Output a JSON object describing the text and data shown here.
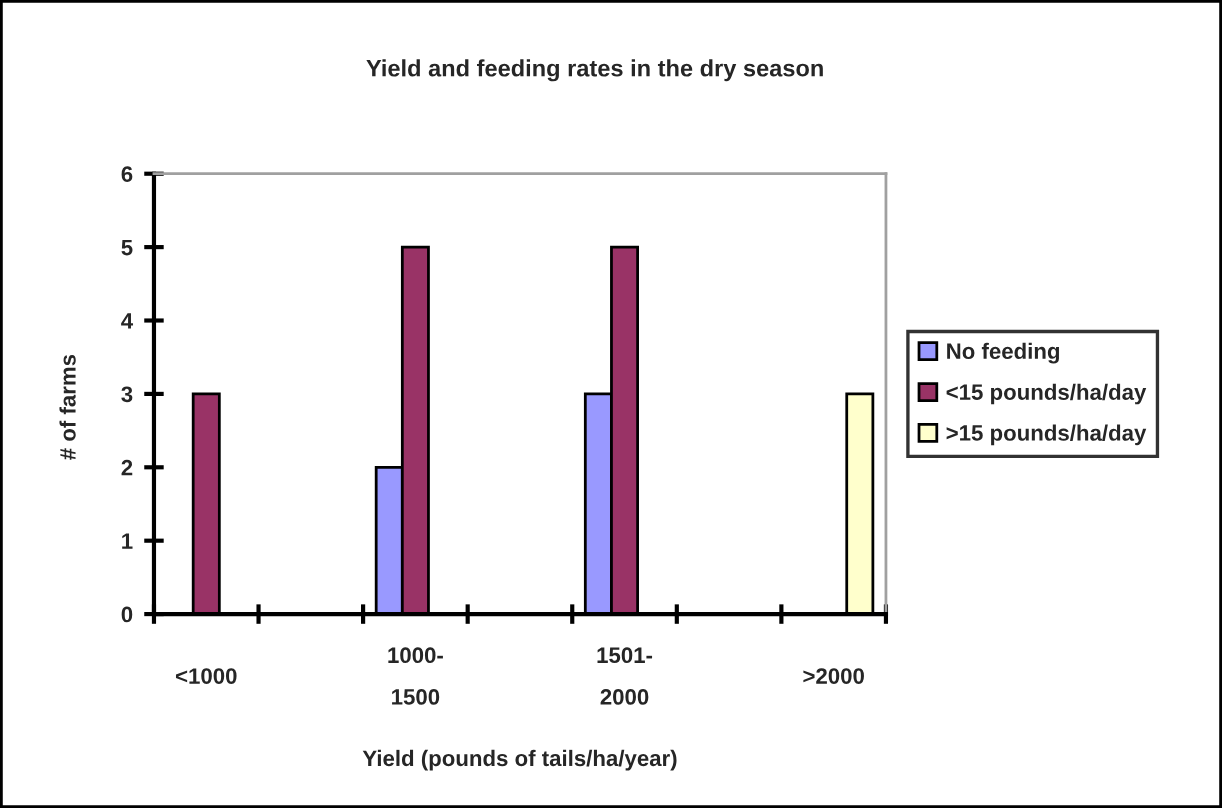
{
  "chart_data": {
    "type": "bar",
    "title": "Yield and feeding rates in the dry season",
    "xlabel": "Yield (pounds of tails/ha/year)",
    "ylabel": "# of farms",
    "categories": [
      "<1000",
      null,
      "1000-\n1500",
      null,
      "1501-\n2000",
      null,
      ">2000"
    ],
    "series": [
      {
        "name": "No feeding",
        "color": "#9999ff",
        "values": [
          null,
          null,
          2,
          null,
          3,
          null,
          null
        ]
      },
      {
        "name": "<15 pounds/ha/day",
        "color": "#993366",
        "values": [
          3,
          null,
          5,
          null,
          5,
          null,
          null
        ]
      },
      {
        "name": ">15 pounds/ha/day",
        "color": "#ffffcc",
        "values": [
          null,
          null,
          null,
          null,
          null,
          null,
          3
        ]
      }
    ],
    "ylim": [
      0,
      6
    ],
    "yticks": [
      0,
      1,
      2,
      3,
      4,
      5,
      6
    ],
    "legend": "right"
  }
}
